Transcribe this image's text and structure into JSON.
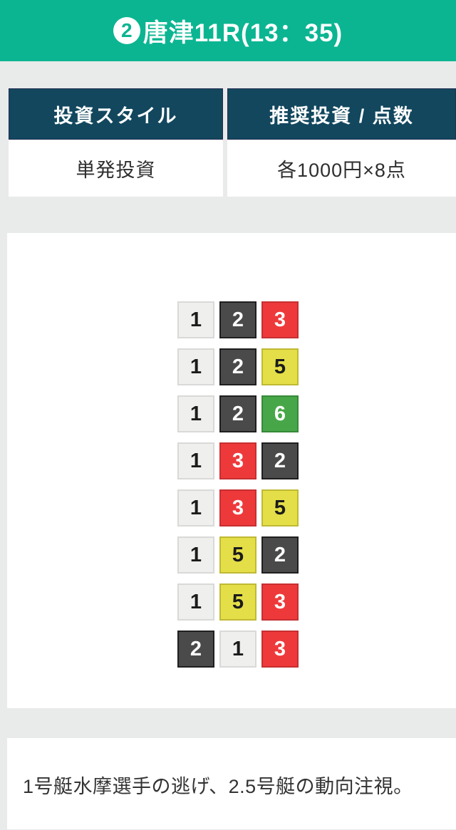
{
  "header": {
    "badge_number": "2",
    "title": "唐津11R(13：35)"
  },
  "invest_table": {
    "style_column": {
      "header": "投資スタイル",
      "value": "単発投資"
    },
    "amount_column": {
      "header": "推奨投資 / 点数",
      "value": "各1000円×8点"
    }
  },
  "combinations": {
    "rows": [
      [
        1,
        2,
        3
      ],
      [
        1,
        2,
        5
      ],
      [
        1,
        2,
        6
      ],
      [
        1,
        3,
        2
      ],
      [
        1,
        3,
        5
      ],
      [
        1,
        5,
        2
      ],
      [
        1,
        5,
        3
      ],
      [
        2,
        1,
        3
      ]
    ]
  },
  "boat_colors": {
    "1": {
      "bg": "#efefed",
      "border": "#d9d9d7",
      "text": "#1b1b1b"
    },
    "2": {
      "bg": "#4a4a4a",
      "border": "#1f1f1f",
      "text": "#ffffff"
    },
    "3": {
      "bg": "#ee393b",
      "border": "#c62f31",
      "text": "#ffffff"
    },
    "5": {
      "bg": "#e4de48",
      "border": "#bfb934",
      "text": "#1b1b1b"
    },
    "6": {
      "bg": "#47a748",
      "border": "#38893a",
      "text": "#ffffff"
    }
  },
  "note": {
    "text": "1号艇水摩選手の逃げ、2.5号艇の動向注視。"
  },
  "colors": {
    "accent_green": "#0bb592",
    "table_header_bg": "#12475e",
    "table_header_border": "#232e52",
    "page_bg": "#e9eaea"
  }
}
